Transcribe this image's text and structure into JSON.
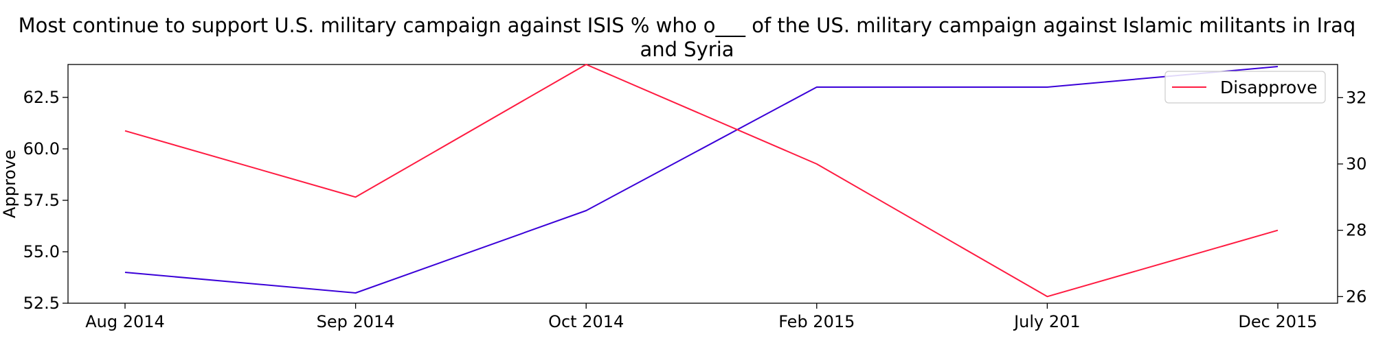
{
  "chart_data": {
    "type": "line",
    "title": "Most continue to support U.S. military campaign against ISIS % who o___ of the US. military campaign against Islamic militants in Iraq and Syria",
    "categories": [
      "Aug 2014",
      "Sep 2014",
      "Oct 2014",
      "Feb 2015",
      "July 201",
      "Dec 2015"
    ],
    "series": [
      {
        "name": "Approve",
        "axis": "left",
        "color": "#3a00d8",
        "values": [
          54,
          53,
          57,
          63,
          63,
          64
        ]
      },
      {
        "name": "Disapprove",
        "axis": "right",
        "color": "#ff1a40",
        "values": [
          31,
          29,
          33,
          30,
          26,
          28
        ]
      }
    ],
    "ylabel": "Approve",
    "ylabel_right": "",
    "ylim": [
      52.5,
      64.1
    ],
    "ylim_right": [
      25.8,
      33.0
    ],
    "yticks": [
      "52.5",
      "55.0",
      "57.5",
      "60.0",
      "62.5"
    ],
    "yticks_right": [
      "26",
      "28",
      "30",
      "32"
    ],
    "legend": {
      "position": "top-right",
      "entries": [
        "Disapprove"
      ]
    },
    "grid": false
  }
}
